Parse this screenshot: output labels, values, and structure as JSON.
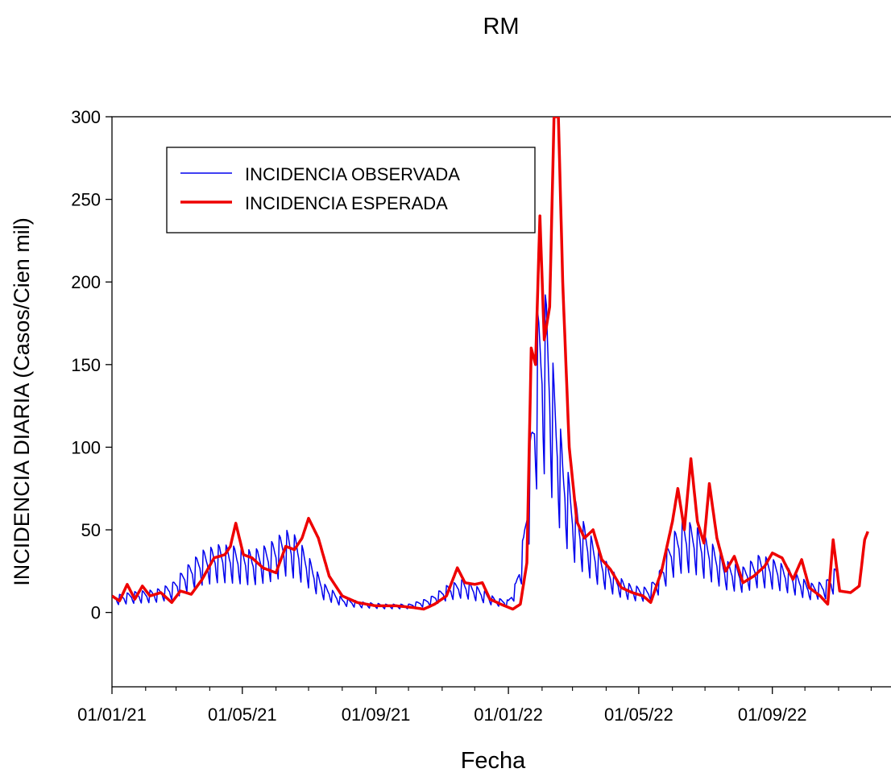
{
  "chart_data": {
    "type": "line",
    "title": "RM",
    "xlabel": "Fecha",
    "ylabel": "INCIDENCIA DIARIA (Casos/Cien mil)",
    "ylim": [
      -45,
      300
    ],
    "yticks": [
      0,
      50,
      100,
      150,
      200,
      250,
      300
    ],
    "xlim": [
      "2021-01-01",
      "2022-12-20"
    ],
    "xticks": [
      {
        "date": "2021-01-01",
        "label": "01/01/21"
      },
      {
        "date": "2021-05-01",
        "label": "01/05/21"
      },
      {
        "date": "2021-09-01",
        "label": "01/09/21"
      },
      {
        "date": "2022-01-01",
        "label": "01/01/22"
      },
      {
        "date": "2022-05-01",
        "label": "01/05/22"
      },
      {
        "date": "2022-09-01",
        "label": "01/09/22"
      }
    ],
    "grid": false,
    "legend_position": "top-left",
    "series": [
      {
        "name": "INCIDENCIA OBSERVADA",
        "color": "#0000ee",
        "weekly_cycle": true,
        "points": [
          [
            "2021-01-01",
            8
          ],
          [
            "2021-01-20",
            10
          ],
          [
            "2021-02-10",
            11
          ],
          [
            "2021-02-25",
            14
          ],
          [
            "2021-03-10",
            22
          ],
          [
            "2021-03-25",
            30
          ],
          [
            "2021-04-10",
            33
          ],
          [
            "2021-04-25",
            32
          ],
          [
            "2021-05-10",
            30
          ],
          [
            "2021-05-25",
            33
          ],
          [
            "2021-06-10",
            40
          ],
          [
            "2021-06-20",
            37
          ],
          [
            "2021-07-01",
            27
          ],
          [
            "2021-07-15",
            14
          ],
          [
            "2021-08-01",
            7
          ],
          [
            "2021-08-20",
            5
          ],
          [
            "2021-09-10",
            4
          ],
          [
            "2021-10-01",
            4
          ],
          [
            "2021-10-20",
            7
          ],
          [
            "2021-11-05",
            13
          ],
          [
            "2021-11-20",
            16
          ],
          [
            "2021-12-05",
            12
          ],
          [
            "2021-12-20",
            7
          ],
          [
            "2022-01-01",
            6
          ],
          [
            "2022-01-08",
            15
          ],
          [
            "2022-01-15",
            38
          ],
          [
            "2022-01-22",
            90
          ],
          [
            "2022-01-28",
            145
          ],
          [
            "2022-02-05",
            155
          ],
          [
            "2022-02-12",
            115
          ],
          [
            "2022-02-20",
            80
          ],
          [
            "2022-03-01",
            58
          ],
          [
            "2022-03-10",
            45
          ],
          [
            "2022-03-25",
            30
          ],
          [
            "2022-04-10",
            18
          ],
          [
            "2022-04-25",
            13
          ],
          [
            "2022-05-10",
            12
          ],
          [
            "2022-05-20",
            20
          ],
          [
            "2022-06-01",
            38
          ],
          [
            "2022-06-12",
            45
          ],
          [
            "2022-06-22",
            42
          ],
          [
            "2022-07-05",
            35
          ],
          [
            "2022-07-20",
            25
          ],
          [
            "2022-08-05",
            22
          ],
          [
            "2022-08-20",
            28
          ],
          [
            "2022-09-05",
            25
          ],
          [
            "2022-09-20",
            20
          ],
          [
            "2022-10-05",
            14
          ],
          [
            "2022-10-20",
            15
          ],
          [
            "2022-11-01",
            24
          ]
        ]
      },
      {
        "name": "INCIDENCIA ESPERADA",
        "color": "#ee0000",
        "weekly_cycle": false,
        "points": [
          [
            "2021-01-01",
            10
          ],
          [
            "2021-01-08",
            7
          ],
          [
            "2021-01-15",
            17
          ],
          [
            "2021-01-22",
            8
          ],
          [
            "2021-01-29",
            16
          ],
          [
            "2021-02-05",
            10
          ],
          [
            "2021-02-15",
            12
          ],
          [
            "2021-02-25",
            6
          ],
          [
            "2021-03-05",
            13
          ],
          [
            "2021-03-15",
            11
          ],
          [
            "2021-03-25",
            20
          ],
          [
            "2021-04-05",
            33
          ],
          [
            "2021-04-15",
            35
          ],
          [
            "2021-04-20",
            40
          ],
          [
            "2021-04-25",
            54
          ],
          [
            "2021-05-02",
            35
          ],
          [
            "2021-05-10",
            33
          ],
          [
            "2021-05-20",
            27
          ],
          [
            "2021-06-01",
            24
          ],
          [
            "2021-06-10",
            40
          ],
          [
            "2021-06-18",
            38
          ],
          [
            "2021-06-25",
            45
          ],
          [
            "2021-07-01",
            57
          ],
          [
            "2021-07-10",
            45
          ],
          [
            "2021-07-20",
            22
          ],
          [
            "2021-08-01",
            10
          ],
          [
            "2021-08-15",
            6
          ],
          [
            "2021-09-01",
            4
          ],
          [
            "2021-09-20",
            4
          ],
          [
            "2021-10-05",
            3
          ],
          [
            "2021-10-15",
            2
          ],
          [
            "2021-10-25",
            5
          ],
          [
            "2021-11-05",
            10
          ],
          [
            "2021-11-15",
            27
          ],
          [
            "2021-11-22",
            18
          ],
          [
            "2021-12-01",
            17
          ],
          [
            "2021-12-08",
            18
          ],
          [
            "2021-12-15",
            8
          ],
          [
            "2021-12-25",
            5
          ],
          [
            "2022-01-05",
            2
          ],
          [
            "2022-01-12",
            5
          ],
          [
            "2022-01-18",
            30
          ],
          [
            "2022-01-22",
            160
          ],
          [
            "2022-01-26",
            150
          ],
          [
            "2022-01-30",
            240
          ],
          [
            "2022-02-03",
            165
          ],
          [
            "2022-02-08",
            185
          ],
          [
            "2022-02-12",
            300
          ],
          [
            "2022-02-16",
            300
          ],
          [
            "2022-02-20",
            200
          ],
          [
            "2022-02-26",
            100
          ],
          [
            "2022-03-05",
            55
          ],
          [
            "2022-03-12",
            45
          ],
          [
            "2022-03-20",
            50
          ],
          [
            "2022-03-28",
            32
          ],
          [
            "2022-04-05",
            26
          ],
          [
            "2022-04-15",
            15
          ],
          [
            "2022-04-25",
            12
          ],
          [
            "2022-05-05",
            10
          ],
          [
            "2022-05-12",
            6
          ],
          [
            "2022-05-22",
            25
          ],
          [
            "2022-06-01",
            55
          ],
          [
            "2022-06-06",
            75
          ],
          [
            "2022-06-12",
            50
          ],
          [
            "2022-06-18",
            93
          ],
          [
            "2022-06-24",
            55
          ],
          [
            "2022-06-30",
            42
          ],
          [
            "2022-07-05",
            78
          ],
          [
            "2022-07-12",
            45
          ],
          [
            "2022-07-20",
            25
          ],
          [
            "2022-07-28",
            34
          ],
          [
            "2022-08-05",
            18
          ],
          [
            "2022-08-15",
            22
          ],
          [
            "2022-08-25",
            28
          ],
          [
            "2022-09-01",
            36
          ],
          [
            "2022-09-10",
            33
          ],
          [
            "2022-09-20",
            20
          ],
          [
            "2022-09-28",
            32
          ],
          [
            "2022-10-05",
            15
          ],
          [
            "2022-10-15",
            10
          ],
          [
            "2022-10-22",
            5
          ],
          [
            "2022-10-27",
            44
          ],
          [
            "2022-11-02",
            13
          ],
          [
            "2022-11-12",
            12
          ],
          [
            "2022-11-20",
            16
          ],
          [
            "2022-11-25",
            44
          ],
          [
            "2022-11-28",
            49
          ]
        ]
      }
    ]
  }
}
